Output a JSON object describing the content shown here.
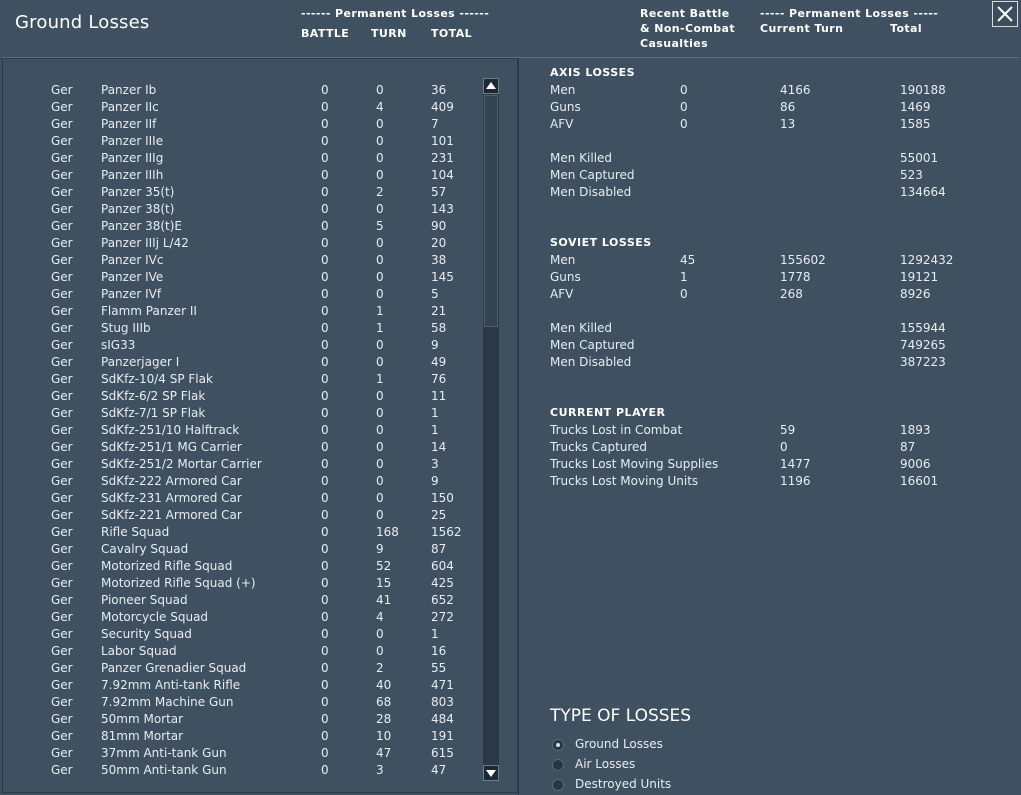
{
  "title": "Ground Losses",
  "header": {
    "perm_losses_left": "------ Permanent Losses ------",
    "battle": "BATTLE",
    "turn": "TURN",
    "total": "TOTAL",
    "recent_1": "Recent Battle",
    "recent_2": "& Non-Combat",
    "recent_3": "Casualties",
    "perm_losses_right": "----- Permanent Losses -----",
    "current_turn": "Current Turn",
    "total_right": "Total"
  },
  "losses": [
    {
      "nation": "Ger",
      "unit": "Panzer Ib",
      "battle": "0",
      "turn": "0",
      "total": "36"
    },
    {
      "nation": "Ger",
      "unit": "Panzer IIc",
      "battle": "0",
      "turn": "4",
      "total": "409"
    },
    {
      "nation": "Ger",
      "unit": "Panzer IIf",
      "battle": "0",
      "turn": "0",
      "total": "7"
    },
    {
      "nation": "Ger",
      "unit": "Panzer IIIe",
      "battle": "0",
      "turn": "0",
      "total": "101"
    },
    {
      "nation": "Ger",
      "unit": "Panzer IIIg",
      "battle": "0",
      "turn": "0",
      "total": "231"
    },
    {
      "nation": "Ger",
      "unit": "Panzer IIIh",
      "battle": "0",
      "turn": "0",
      "total": "104"
    },
    {
      "nation": "Ger",
      "unit": "Panzer 35(t)",
      "battle": "0",
      "turn": "2",
      "total": "57"
    },
    {
      "nation": "Ger",
      "unit": "Panzer 38(t)",
      "battle": "0",
      "turn": "0",
      "total": "143"
    },
    {
      "nation": "Ger",
      "unit": "Panzer 38(t)E",
      "battle": "0",
      "turn": "5",
      "total": "90"
    },
    {
      "nation": "Ger",
      "unit": "Panzer IIIj L/42",
      "battle": "0",
      "turn": "0",
      "total": "20"
    },
    {
      "nation": "Ger",
      "unit": "Panzer IVc",
      "battle": "0",
      "turn": "0",
      "total": "38"
    },
    {
      "nation": "Ger",
      "unit": "Panzer IVe",
      "battle": "0",
      "turn": "0",
      "total": "145"
    },
    {
      "nation": "Ger",
      "unit": "Panzer IVf",
      "battle": "0",
      "turn": "0",
      "total": "5"
    },
    {
      "nation": "Ger",
      "unit": "Flamm Panzer II",
      "battle": "0",
      "turn": "1",
      "total": "21"
    },
    {
      "nation": "Ger",
      "unit": "Stug IIIb",
      "battle": "0",
      "turn": "1",
      "total": "58"
    },
    {
      "nation": "Ger",
      "unit": "sIG33",
      "battle": "0",
      "turn": "0",
      "total": "9"
    },
    {
      "nation": "Ger",
      "unit": "Panzerjager I",
      "battle": "0",
      "turn": "0",
      "total": "49"
    },
    {
      "nation": "Ger",
      "unit": "SdKfz-10/4 SP Flak",
      "battle": "0",
      "turn": "1",
      "total": "76"
    },
    {
      "nation": "Ger",
      "unit": "SdKfz-6/2 SP Flak",
      "battle": "0",
      "turn": "0",
      "total": "11"
    },
    {
      "nation": "Ger",
      "unit": "SdKfz-7/1 SP Flak",
      "battle": "0",
      "turn": "0",
      "total": "1"
    },
    {
      "nation": "Ger",
      "unit": "SdKfz-251/10 Halftrack",
      "battle": "0",
      "turn": "0",
      "total": "1"
    },
    {
      "nation": "Ger",
      "unit": "SdKfz-251/1 MG Carrier",
      "battle": "0",
      "turn": "0",
      "total": "14"
    },
    {
      "nation": "Ger",
      "unit": "SdKfz-251/2 Mortar Carrier",
      "battle": "0",
      "turn": "0",
      "total": "3"
    },
    {
      "nation": "Ger",
      "unit": "SdKfz-222 Armored Car",
      "battle": "0",
      "turn": "0",
      "total": "9"
    },
    {
      "nation": "Ger",
      "unit": "SdKfz-231 Armored Car",
      "battle": "0",
      "turn": "0",
      "total": "150"
    },
    {
      "nation": "Ger",
      "unit": "SdKfz-221 Armored Car",
      "battle": "0",
      "turn": "0",
      "total": "25"
    },
    {
      "nation": "Ger",
      "unit": "Rifle Squad",
      "battle": "0",
      "turn": "168",
      "total": "1562"
    },
    {
      "nation": "Ger",
      "unit": "Cavalry Squad",
      "battle": "0",
      "turn": "9",
      "total": "87"
    },
    {
      "nation": "Ger",
      "unit": "Motorized Rifle Squad",
      "battle": "0",
      "turn": "52",
      "total": "604"
    },
    {
      "nation": "Ger",
      "unit": "Motorized Rifle Squad (+)",
      "battle": "0",
      "turn": "15",
      "total": "425"
    },
    {
      "nation": "Ger",
      "unit": "Pioneer Squad",
      "battle": "0",
      "turn": "41",
      "total": "652"
    },
    {
      "nation": "Ger",
      "unit": "Motorcycle Squad",
      "battle": "0",
      "turn": "4",
      "total": "272"
    },
    {
      "nation": "Ger",
      "unit": "Security Squad",
      "battle": "0",
      "turn": "0",
      "total": "1"
    },
    {
      "nation": "Ger",
      "unit": "Labor Squad",
      "battle": "0",
      "turn": "0",
      "total": "16"
    },
    {
      "nation": "Ger",
      "unit": "Panzer Grenadier Squad",
      "battle": "0",
      "turn": "2",
      "total": "55"
    },
    {
      "nation": "Ger",
      "unit": "7.92mm Anti-tank Rifle",
      "battle": "0",
      "turn": "40",
      "total": "471"
    },
    {
      "nation": "Ger",
      "unit": "7.92mm Machine Gun",
      "battle": "0",
      "turn": "68",
      "total": "803"
    },
    {
      "nation": "Ger",
      "unit": "50mm Mortar",
      "battle": "0",
      "turn": "28",
      "total": "484"
    },
    {
      "nation": "Ger",
      "unit": "81mm Mortar",
      "battle": "0",
      "turn": "10",
      "total": "191"
    },
    {
      "nation": "Ger",
      "unit": "37mm Anti-tank Gun",
      "battle": "0",
      "turn": "47",
      "total": "615"
    },
    {
      "nation": "Ger",
      "unit": "50mm Anti-tank Gun",
      "battle": "0",
      "turn": "3",
      "total": "47"
    }
  ],
  "axis": {
    "title": "AXIS LOSSES",
    "rows": [
      {
        "label": "Men",
        "recent": "0",
        "turn": "4166",
        "total": "190188"
      },
      {
        "label": "Guns",
        "recent": "0",
        "turn": "86",
        "total": "1469"
      },
      {
        "label": "AFV",
        "recent": "0",
        "turn": "13",
        "total": "1585"
      }
    ],
    "details": [
      {
        "label": "Men Killed",
        "total": "55001"
      },
      {
        "label": "Men Captured",
        "total": "523"
      },
      {
        "label": "Men Disabled",
        "total": "134664"
      }
    ]
  },
  "soviet": {
    "title": "SOVIET LOSSES",
    "rows": [
      {
        "label": "Men",
        "recent": "45",
        "turn": "155602",
        "total": "1292432"
      },
      {
        "label": "Guns",
        "recent": "1",
        "turn": "1778",
        "total": "19121"
      },
      {
        "label": "AFV",
        "recent": "0",
        "turn": "268",
        "total": "8926"
      }
    ],
    "details": [
      {
        "label": "Men Killed",
        "total": "155944"
      },
      {
        "label": "Men Captured",
        "total": "749265"
      },
      {
        "label": "Men Disabled",
        "total": "387223"
      }
    ]
  },
  "player": {
    "title": "CURRENT PLAYER",
    "rows": [
      {
        "label": "Trucks Lost in Combat",
        "turn": "59",
        "total": "1893"
      },
      {
        "label": "Trucks Captured",
        "turn": "0",
        "total": "87"
      },
      {
        "label": "Trucks Lost Moving Supplies",
        "turn": "1477",
        "total": "9006"
      },
      {
        "label": "Trucks Lost Moving Units",
        "turn": "1196",
        "total": "16601"
      }
    ]
  },
  "type_of_losses": {
    "title": "TYPE OF LOSSES",
    "options": [
      {
        "label": "Ground Losses",
        "selected": true
      },
      {
        "label": "Air Losses",
        "selected": false
      },
      {
        "label": "Destroyed Units",
        "selected": false
      }
    ]
  },
  "colors": {
    "background": "#3f5161",
    "text": "#e8ecef",
    "header": "#ffffff"
  },
  "icons": {
    "close": "close-icon",
    "scroll_up": "arrow-up-icon",
    "scroll_down": "arrow-down-icon"
  }
}
